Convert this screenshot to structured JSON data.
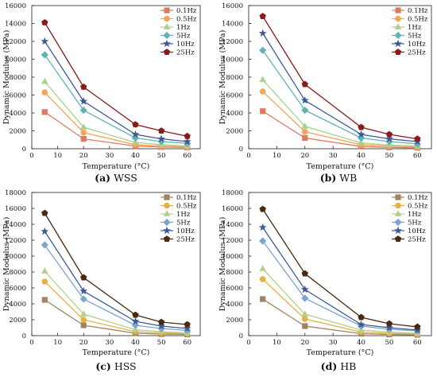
{
  "chart_data": [
    {
      "type": "line",
      "caption_letter": "(a)",
      "caption_text": "WSS",
      "xlabel": "Temperature (°C)",
      "ylabel": "Dynamic Modulus (MPa)",
      "x": [
        5,
        20,
        40,
        50,
        60
      ],
      "xlim": [
        0,
        65
      ],
      "xticks": [
        0,
        10,
        20,
        30,
        40,
        50,
        60
      ],
      "ylim": [
        0,
        16000
      ],
      "yticks": [
        0,
        2000,
        4000,
        6000,
        8000,
        10000,
        12000,
        14000,
        16000
      ],
      "legend_position": "top-right",
      "series": [
        {
          "name": "0.1Hz",
          "marker": "square",
          "color": "#e07a5f",
          "values": [
            4100,
            1100,
            300,
            200,
            150
          ]
        },
        {
          "name": "0.5Hz",
          "marker": "circle",
          "color": "#f2a65a",
          "values": [
            6300,
            1800,
            450,
            300,
            200
          ]
        },
        {
          "name": "1Hz",
          "marker": "triangle",
          "color": "#a9d08e",
          "values": [
            7500,
            2400,
            700,
            450,
            300
          ]
        },
        {
          "name": "5Hz",
          "marker": "diamond",
          "color": "#5fb3b3",
          "values": [
            10500,
            4300,
            1200,
            800,
            600
          ]
        },
        {
          "name": "10Hz",
          "marker": "star",
          "color": "#3d5a98",
          "values": [
            12000,
            5300,
            1600,
            1100,
            800
          ]
        },
        {
          "name": "25Hz",
          "marker": "pentagon",
          "color": "#8b1a1a",
          "values": [
            14100,
            6900,
            2700,
            2000,
            1400
          ]
        }
      ]
    },
    {
      "type": "line",
      "caption_letter": "(b)",
      "caption_text": "WB",
      "xlabel": "Temperature (°C)",
      "ylabel": "Dynamic Modulus (MPa)",
      "x": [
        5,
        20,
        40,
        50,
        60
      ],
      "xlim": [
        0,
        65
      ],
      "xticks": [
        0,
        10,
        20,
        30,
        40,
        50,
        60
      ],
      "ylim": [
        0,
        16000
      ],
      "yticks": [
        0,
        2000,
        4000,
        6000,
        8000,
        10000,
        12000,
        14000,
        16000
      ],
      "legend_position": "top-right",
      "series": [
        {
          "name": "0.1Hz",
          "marker": "square",
          "color": "#e07a5f",
          "values": [
            4200,
            1200,
            250,
            150,
            100
          ]
        },
        {
          "name": "0.5Hz",
          "marker": "circle",
          "color": "#f2a65a",
          "values": [
            6400,
            1900,
            450,
            300,
            200
          ]
        },
        {
          "name": "1Hz",
          "marker": "triangle",
          "color": "#a9d08e",
          "values": [
            7700,
            2500,
            650,
            400,
            300
          ]
        },
        {
          "name": "5Hz",
          "marker": "diamond",
          "color": "#5fb3b3",
          "values": [
            11000,
            4300,
            1200,
            800,
            550
          ]
        },
        {
          "name": "10Hz",
          "marker": "star",
          "color": "#3d5a98",
          "values": [
            12900,
            5400,
            1600,
            1100,
            800
          ]
        },
        {
          "name": "25Hz",
          "marker": "pentagon",
          "color": "#8b1a1a",
          "values": [
            14800,
            7200,
            2400,
            1600,
            1100
          ]
        }
      ]
    },
    {
      "type": "line",
      "caption_letter": "(c)",
      "caption_text": "HSS",
      "xlabel": "Temperature (°C)",
      "ylabel": "Dynamic Modulus (MPa)",
      "x": [
        5,
        20,
        40,
        50,
        60
      ],
      "xlim": [
        0,
        65
      ],
      "xticks": [
        0,
        10,
        20,
        30,
        40,
        50,
        60
      ],
      "ylim": [
        0,
        18000
      ],
      "yticks": [
        0,
        2000,
        4000,
        6000,
        8000,
        10000,
        12000,
        14000,
        16000,
        18000
      ],
      "legend_position": "top-right",
      "series": [
        {
          "name": "0.1Hz",
          "marker": "square",
          "color": "#a08460",
          "values": [
            4500,
            1300,
            300,
            200,
            150
          ]
        },
        {
          "name": "0.5Hz",
          "marker": "circle",
          "color": "#e8b040",
          "values": [
            6800,
            2000,
            500,
            350,
            250
          ]
        },
        {
          "name": "1Hz",
          "marker": "triangle",
          "color": "#b5cf8e",
          "values": [
            8100,
            2700,
            750,
            500,
            350
          ]
        },
        {
          "name": "5Hz",
          "marker": "diamond",
          "color": "#7aa5d0",
          "values": [
            11400,
            4600,
            1300,
            900,
            650
          ]
        },
        {
          "name": "10Hz",
          "marker": "star",
          "color": "#3d5a98",
          "values": [
            13100,
            5600,
            1800,
            1200,
            900
          ]
        },
        {
          "name": "25Hz",
          "marker": "pentagon",
          "color": "#4a2a0f",
          "values": [
            15400,
            7300,
            2600,
            1700,
            1400
          ]
        }
      ]
    },
    {
      "type": "line",
      "caption_letter": "(d)",
      "caption_text": "HB",
      "xlabel": "Temperature (°C)",
      "ylabel": "Dynamic Modulus (MPa)",
      "x": [
        5,
        20,
        40,
        50,
        60
      ],
      "xlim": [
        0,
        65
      ],
      "xticks": [
        0,
        10,
        20,
        30,
        40,
        50,
        60
      ],
      "ylim": [
        0,
        18000
      ],
      "yticks": [
        0,
        2000,
        4000,
        6000,
        8000,
        10000,
        12000,
        14000,
        16000,
        18000
      ],
      "legend_position": "top-right",
      "series": [
        {
          "name": "0.1Hz",
          "marker": "square",
          "color": "#a08460",
          "values": [
            4600,
            1200,
            250,
            150,
            100
          ]
        },
        {
          "name": "0.5Hz",
          "marker": "circle",
          "color": "#e8b040",
          "values": [
            7100,
            2100,
            450,
            300,
            200
          ]
        },
        {
          "name": "1Hz",
          "marker": "triangle",
          "color": "#b5cf8e",
          "values": [
            8400,
            2700,
            700,
            450,
            300
          ]
        },
        {
          "name": "5Hz",
          "marker": "diamond",
          "color": "#7aa5d0",
          "values": [
            11900,
            4700,
            1200,
            800,
            600
          ]
        },
        {
          "name": "10Hz",
          "marker": "star",
          "color": "#3d5a98",
          "values": [
            13600,
            5800,
            1400,
            1000,
            700
          ]
        },
        {
          "name": "25Hz",
          "marker": "pentagon",
          "color": "#4a2a0f",
          "values": [
            15900,
            7800,
            2300,
            1500,
            1100
          ]
        }
      ]
    }
  ]
}
